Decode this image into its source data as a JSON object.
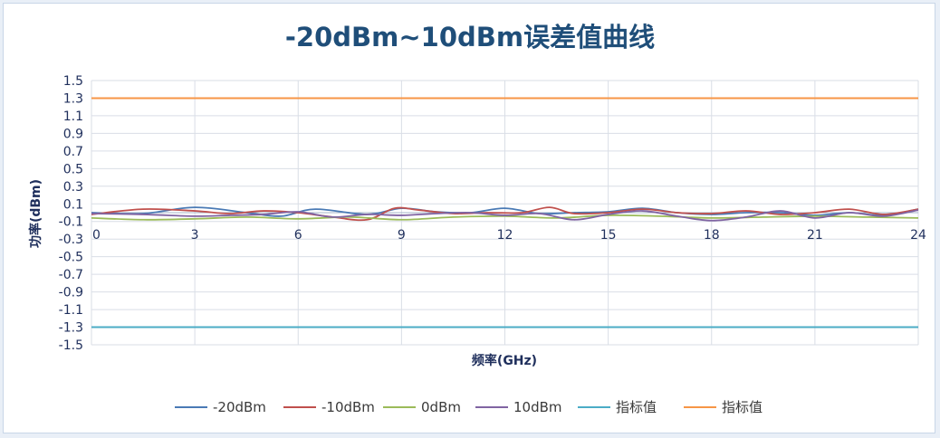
{
  "chart_data": {
    "type": "line",
    "title": "-20dBm~10dBm误差值曲线",
    "xlabel": "频率(GHz)",
    "ylabel": "功率(dBm)",
    "xlim": [
      0,
      24
    ],
    "ylim": [
      -1.5,
      1.5
    ],
    "x_ticks": [
      "0",
      "3",
      "6",
      "9",
      "12",
      "15",
      "18",
      "21",
      "24"
    ],
    "y_ticks": [
      "1.5",
      "1.3",
      "1.1",
      "0.9",
      "0.7",
      "0.5",
      "0.3",
      "0.1",
      "-0.1",
      "-0.3",
      "-0.5",
      "-0.7",
      "-0.9",
      "-1.1",
      "-1.3",
      "-1.5"
    ],
    "grid": true,
    "legend_position": "bottom",
    "series": [
      {
        "name": "-20dBm",
        "color": "#4a7ab5",
        "x": [
          0,
          1.5,
          3,
          4.5,
          5.5,
          6.5,
          8,
          9,
          10,
          11,
          12,
          13,
          14,
          15,
          16,
          17,
          18,
          19,
          20,
          21,
          22,
          23,
          24
        ],
        "y": [
          0.0,
          -0.01,
          0.06,
          0.0,
          -0.04,
          0.04,
          -0.02,
          0.05,
          0.01,
          0.0,
          0.05,
          -0.01,
          0.0,
          0.01,
          0.05,
          0.0,
          -0.02,
          0.0,
          0.0,
          -0.03,
          0.0,
          -0.03,
          0.04
        ]
      },
      {
        "name": "-10dBm",
        "color": "#c0504d",
        "x": [
          0,
          1.5,
          3,
          4,
          5,
          6,
          7,
          8,
          8.8,
          9.5,
          10.5,
          11.5,
          12.5,
          13.3,
          14,
          15,
          16,
          17,
          18,
          19,
          20,
          21,
          22,
          23,
          24
        ],
        "y": [
          -0.02,
          0.04,
          0.02,
          -0.01,
          0.02,
          0.0,
          -0.05,
          -0.08,
          0.05,
          0.03,
          -0.01,
          0.0,
          0.0,
          0.06,
          -0.01,
          0.0,
          0.04,
          0.0,
          -0.01,
          0.02,
          -0.02,
          0.0,
          0.04,
          -0.02,
          0.04
        ]
      },
      {
        "name": "0dBm",
        "color": "#9bbb59",
        "x": [
          0,
          1.5,
          3,
          4.5,
          6,
          7.5,
          9,
          10.5,
          12,
          13.5,
          15,
          16.5,
          18,
          19.5,
          21,
          22.5,
          24
        ],
        "y": [
          -0.06,
          -0.08,
          -0.07,
          -0.05,
          -0.07,
          -0.05,
          -0.08,
          -0.05,
          -0.04,
          -0.06,
          -0.03,
          -0.04,
          -0.06,
          -0.05,
          -0.04,
          -0.05,
          -0.06
        ]
      },
      {
        "name": "10dBm",
        "color": "#8064a2",
        "x": [
          0,
          1.5,
          3,
          4,
          5,
          6,
          7,
          8,
          9,
          10,
          11,
          12,
          13,
          14,
          15,
          16,
          17,
          18,
          19,
          20,
          21,
          22,
          23,
          24
        ],
        "y": [
          -0.01,
          -0.02,
          -0.04,
          -0.03,
          -0.02,
          0.01,
          -0.05,
          -0.02,
          -0.03,
          -0.01,
          0.0,
          -0.03,
          -0.01,
          -0.08,
          -0.02,
          0.02,
          -0.04,
          -0.09,
          -0.05,
          0.02,
          -0.06,
          0.0,
          -0.04,
          0.03
        ]
      },
      {
        "name": "指标值",
        "color": "#4bacc6",
        "x": [
          0,
          24
        ],
        "y": [
          -1.3,
          -1.3
        ]
      },
      {
        "name": "指标值",
        "color": "#f79646",
        "x": [
          0,
          24
        ],
        "y": [
          1.3,
          1.3
        ]
      }
    ]
  }
}
